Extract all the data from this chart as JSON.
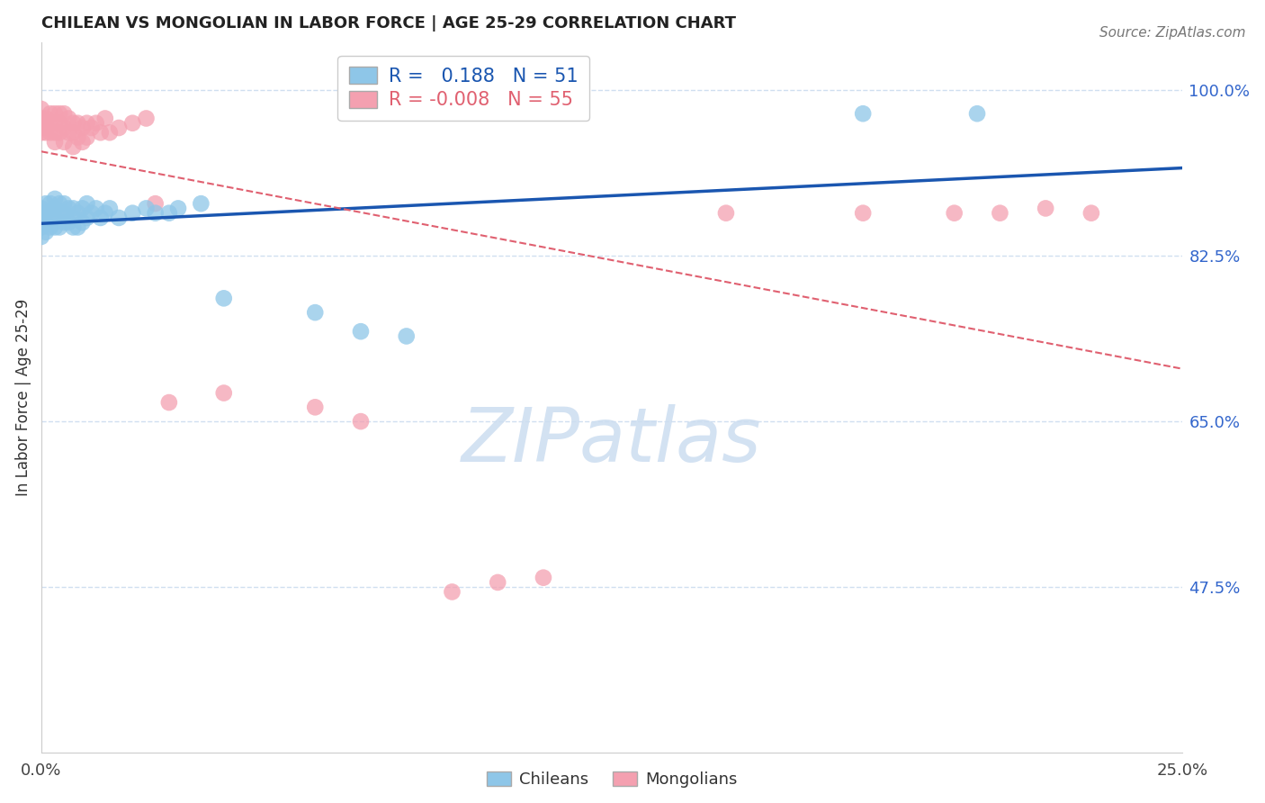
{
  "title": "CHILEAN VS MONGOLIAN IN LABOR FORCE | AGE 25-29 CORRELATION CHART",
  "source": "Source: ZipAtlas.com",
  "ylabel": "In Labor Force | Age 25-29",
  "xlim": [
    0.0,
    0.25
  ],
  "ylim": [
    0.3,
    1.05
  ],
  "xtick_positions": [
    0.0,
    0.25
  ],
  "xtick_labels": [
    "0.0%",
    "25.0%"
  ],
  "ytick_positions": [
    0.475,
    0.65,
    0.825,
    1.0
  ],
  "ytick_labels": [
    "47.5%",
    "65.0%",
    "82.5%",
    "100.0%"
  ],
  "r_chilean": 0.188,
  "n_chilean": 51,
  "r_mongolian": -0.008,
  "n_mongolian": 55,
  "blue_color": "#8ec6e8",
  "pink_color": "#f4a0b0",
  "blue_line_color": "#1a56b0",
  "pink_line_color": "#e06070",
  "grid_color": "#d0dff0",
  "chilean_x": [
    0.0,
    0.0,
    0.0,
    0.0,
    0.0,
    0.001,
    0.001,
    0.001,
    0.001,
    0.002,
    0.002,
    0.002,
    0.003,
    0.003,
    0.003,
    0.003,
    0.004,
    0.004,
    0.004,
    0.005,
    0.005,
    0.005,
    0.006,
    0.006,
    0.007,
    0.007,
    0.007,
    0.008,
    0.008,
    0.009,
    0.009,
    0.01,
    0.01,
    0.011,
    0.012,
    0.013,
    0.014,
    0.015,
    0.017,
    0.02,
    0.023,
    0.025,
    0.028,
    0.03,
    0.035,
    0.04,
    0.06,
    0.07,
    0.08,
    0.18,
    0.205
  ],
  "chilean_y": [
    0.875,
    0.87,
    0.865,
    0.855,
    0.845,
    0.88,
    0.87,
    0.86,
    0.85,
    0.88,
    0.87,
    0.855,
    0.885,
    0.875,
    0.865,
    0.855,
    0.88,
    0.87,
    0.855,
    0.88,
    0.87,
    0.86,
    0.875,
    0.86,
    0.875,
    0.865,
    0.855,
    0.87,
    0.855,
    0.875,
    0.86,
    0.88,
    0.865,
    0.87,
    0.875,
    0.865,
    0.87,
    0.875,
    0.865,
    0.87,
    0.875,
    0.87,
    0.87,
    0.875,
    0.88,
    0.78,
    0.765,
    0.745,
    0.74,
    0.975,
    0.975
  ],
  "mongolian_x": [
    0.0,
    0.0,
    0.0,
    0.0,
    0.0,
    0.001,
    0.001,
    0.001,
    0.001,
    0.002,
    0.002,
    0.002,
    0.003,
    0.003,
    0.003,
    0.003,
    0.004,
    0.004,
    0.004,
    0.005,
    0.005,
    0.005,
    0.006,
    0.006,
    0.007,
    0.007,
    0.007,
    0.008,
    0.008,
    0.009,
    0.009,
    0.01,
    0.01,
    0.011,
    0.012,
    0.013,
    0.014,
    0.015,
    0.017,
    0.02,
    0.023,
    0.025,
    0.028,
    0.04,
    0.06,
    0.07,
    0.09,
    0.1,
    0.11,
    0.15,
    0.18,
    0.2,
    0.21,
    0.22,
    0.23
  ],
  "mongolian_y": [
    0.98,
    0.97,
    0.965,
    0.96,
    0.955,
    0.97,
    0.965,
    0.96,
    0.955,
    0.975,
    0.965,
    0.955,
    0.975,
    0.965,
    0.955,
    0.945,
    0.975,
    0.965,
    0.955,
    0.975,
    0.96,
    0.945,
    0.97,
    0.955,
    0.965,
    0.955,
    0.94,
    0.965,
    0.95,
    0.96,
    0.945,
    0.965,
    0.95,
    0.96,
    0.965,
    0.955,
    0.97,
    0.955,
    0.96,
    0.965,
    0.97,
    0.88,
    0.67,
    0.68,
    0.665,
    0.65,
    0.47,
    0.48,
    0.485,
    0.87,
    0.87,
    0.87,
    0.87,
    0.875,
    0.87
  ]
}
